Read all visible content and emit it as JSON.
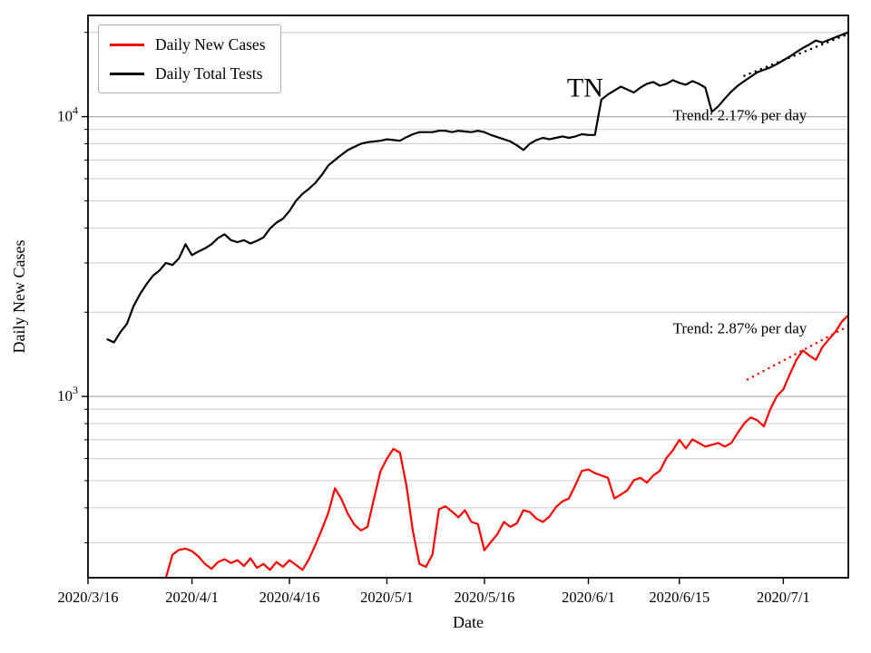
{
  "legend": {
    "items": [
      {
        "label": "Daily New Cases",
        "color": "#ff0000"
      },
      {
        "label": "Daily Total Tests",
        "color": "#000000"
      }
    ]
  },
  "annotations": [
    {
      "text": "TN",
      "x_day": 76.5,
      "y_value": 11800,
      "color": "#000000",
      "font_size": 30,
      "anchor": "middle"
    },
    {
      "text": "Trend: 2.17% per day",
      "x_day": 90,
      "y_value": 9700,
      "color": "#000000",
      "font_size": 17,
      "anchor": "start"
    },
    {
      "text": "Trend: 2.87% per day",
      "x_day": 90,
      "y_value": 1680,
      "color": "#000000",
      "font_size": 17,
      "anchor": "start"
    }
  ],
  "chart_data": {
    "type": "line",
    "yscale": "log",
    "xlabel": "Date",
    "ylabel": "Daily New Cases",
    "state_label": "TN",
    "xlim_days": [
      0,
      117
    ],
    "ylim": [
      225,
      23000
    ],
    "x_start_date": "2020/3/16",
    "x_ticks": [
      {
        "label": "2020/3/16",
        "day": 0
      },
      {
        "label": "2020/4/1",
        "day": 16
      },
      {
        "label": "2020/4/16",
        "day": 31
      },
      {
        "label": "2020/5/1",
        "day": 46
      },
      {
        "label": "2020/5/16",
        "day": 61
      },
      {
        "label": "2020/6/1",
        "day": 77
      },
      {
        "label": "2020/6/15",
        "day": 91
      },
      {
        "label": "2020/7/1",
        "day": 107
      }
    ],
    "y_ticks": [
      {
        "base": "10",
        "exp": "3",
        "value": 1000
      },
      {
        "base": "10",
        "exp": "4",
        "value": 10000
      }
    ],
    "series": [
      {
        "name": "Daily Total Tests",
        "color": "#000000",
        "start_day": 3,
        "values": [
          1600,
          1560,
          1700,
          1820,
          2100,
          2320,
          2520,
          2700,
          2820,
          3000,
          2950,
          3120,
          3500,
          3200,
          3300,
          3380,
          3500,
          3680,
          3800,
          3620,
          3560,
          3620,
          3520,
          3600,
          3700,
          3980,
          4180,
          4320,
          4600,
          5000,
          5300,
          5520,
          5800,
          6200,
          6700,
          7000,
          7300,
          7600,
          7800,
          8000,
          8100,
          8150,
          8200,
          8300,
          8250,
          8200,
          8450,
          8650,
          8800,
          8800,
          8800,
          8900,
          8900,
          8800,
          8900,
          8850,
          8800,
          8900,
          8800,
          8600,
          8450,
          8300,
          8150,
          7900,
          7600,
          8000,
          8250,
          8400,
          8300,
          8400,
          8500,
          8400,
          8500,
          8650,
          8600,
          8600,
          11500,
          12000,
          12400,
          12800,
          12500,
          12200,
          12700,
          13100,
          13300,
          12900,
          13100,
          13500,
          13200,
          13000,
          13400,
          13100,
          12700,
          10400,
          10900,
          11600,
          12300,
          12900,
          13400,
          13900,
          14400,
          14700,
          15000,
          15400,
          15900,
          16400,
          17000,
          17600,
          18100,
          18700,
          18400,
          18800,
          19200,
          19600,
          20000
        ]
      },
      {
        "name": "Daily New Cases",
        "color": "#ff0000",
        "start_day": 12,
        "values": [
          225,
          272,
          283,
          286,
          280,
          268,
          252,
          242,
          256,
          262,
          254,
          260,
          248,
          264,
          244,
          252,
          240,
          256,
          246,
          260,
          250,
          240,
          262,
          295,
          335,
          385,
          470,
          430,
          380,
          348,
          332,
          342,
          430,
          540,
          600,
          650,
          630,
          480,
          330,
          252,
          246,
          272,
          395,
          405,
          388,
          370,
          392,
          356,
          350,
          282,
          302,
          322,
          356,
          342,
          352,
          392,
          386,
          366,
          356,
          372,
          402,
          422,
          432,
          482,
          542,
          548,
          532,
          522,
          512,
          432,
          446,
          462,
          502,
          512,
          492,
          522,
          542,
          602,
          642,
          700,
          652,
          702,
          682,
          662,
          672,
          682,
          662,
          682,
          742,
          802,
          842,
          822,
          782,
          902,
          1002,
          1060,
          1200,
          1350,
          1460,
          1400,
          1350,
          1500,
          1600,
          1700,
          1850,
          1950
        ]
      }
    ],
    "trends": [
      {
        "name": "tests-trend",
        "label": "Trend: 2.17% per day",
        "color": "#000000",
        "rate_percent_per_day": 2.17,
        "start_day": 101,
        "end_day": 117,
        "value_at_start": 14000
      },
      {
        "name": "cases-trend",
        "label": "Trend: 2.87% per day",
        "color": "#ff0000",
        "rate_percent_per_day": 2.87,
        "start_day": 101.5,
        "end_day": 117,
        "value_at_start": 1150
      }
    ]
  }
}
